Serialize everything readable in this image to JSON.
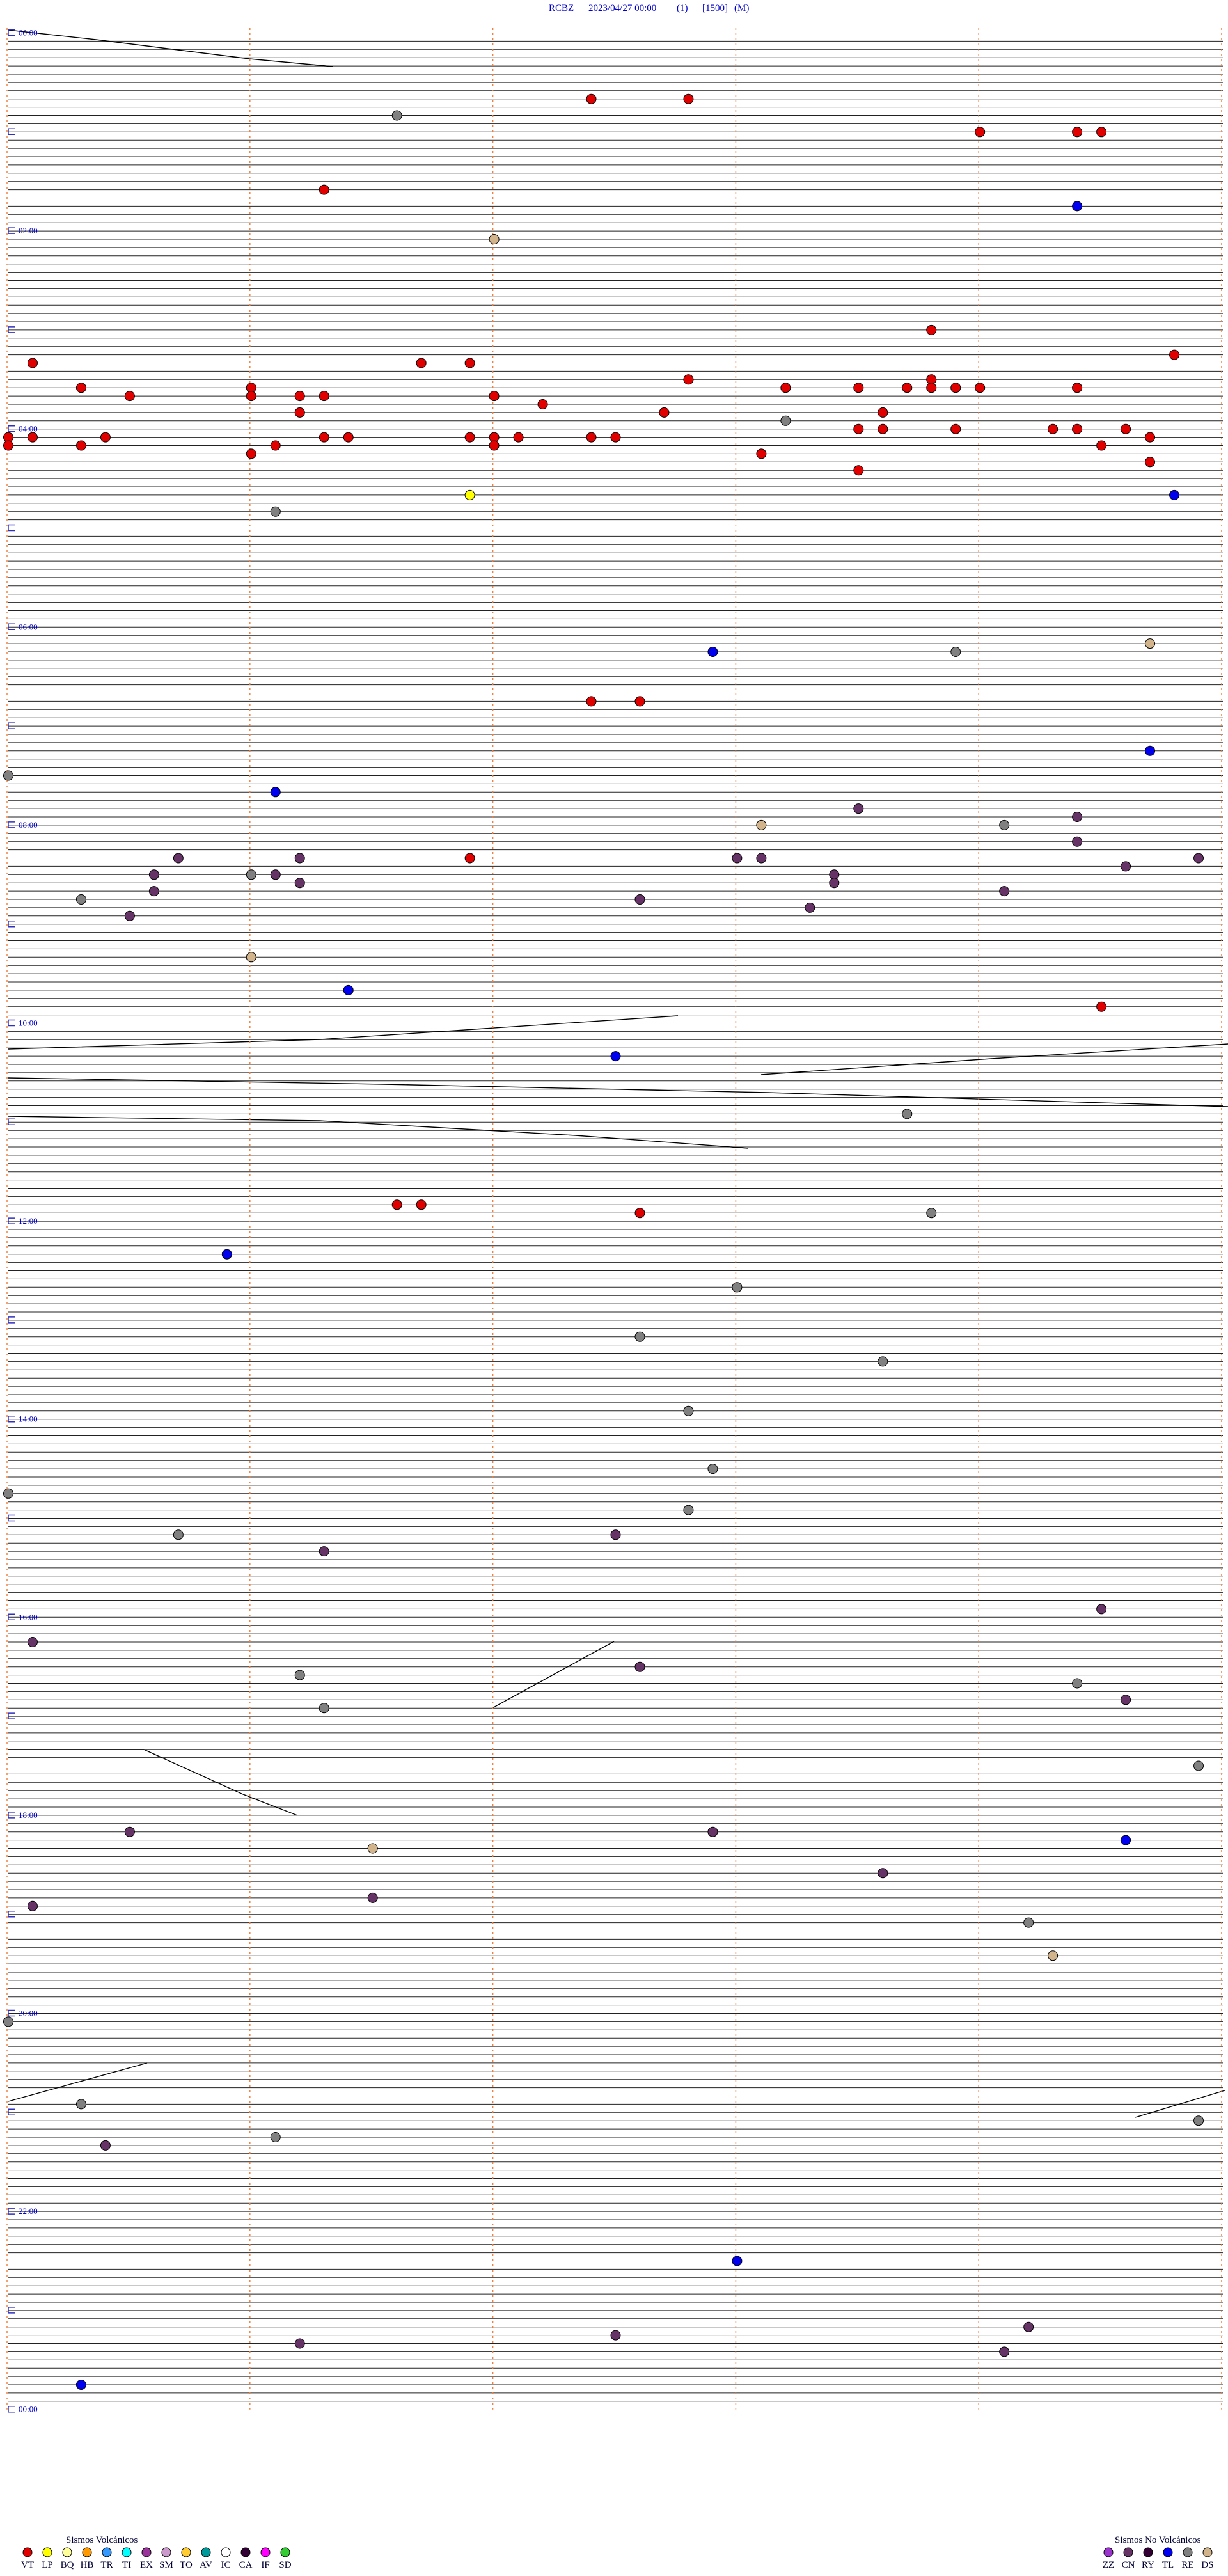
{
  "header": {
    "station": "RCBZ",
    "datetime": "2023/04/27 00:00",
    "channel": "(1)",
    "gain": "[1500]",
    "mode": "(M)"
  },
  "time_labels": [
    "00:00",
    "02:00",
    "04:00",
    "06:00",
    "08:00",
    "10:00",
    "12:00",
    "14:00",
    "16:00",
    "18:00",
    "20:00",
    "22:00",
    "00:00"
  ],
  "minutes_per_row": 5,
  "events": [
    {
      "minute": 42.4,
      "type": "VT"
    },
    {
      "minute": 42.8,
      "type": "VT"
    },
    {
      "minute": 51.6,
      "type": "RE"
    },
    {
      "minute": 64.0,
      "type": "VT"
    },
    {
      "minute": 64.4,
      "type": "VT"
    },
    {
      "minute": 64.5,
      "type": "VT"
    },
    {
      "minute": 96.3,
      "type": "VT"
    },
    {
      "minute": 109.4,
      "type": "TL"
    },
    {
      "minute": 127.0,
      "type": "DS"
    },
    {
      "minute": 183.8,
      "type": "VT"
    },
    {
      "minute": 199.8,
      "type": "VT"
    },
    {
      "minute": 200.1,
      "type": "VT"
    },
    {
      "minute": 201.7,
      "type": "VT"
    },
    {
      "minute": 201.9,
      "type": "VT"
    },
    {
      "minute": 212.8,
      "type": "VT"
    },
    {
      "minute": 213.8,
      "type": "VT"
    },
    {
      "minute": 215.3,
      "type": "VT"
    },
    {
      "minute": 216.0,
      "type": "VT"
    },
    {
      "minute": 218.2,
      "type": "VT"
    },
    {
      "minute": 218.5,
      "type": "VT"
    },
    {
      "minute": 218.7,
      "type": "VT"
    },
    {
      "minute": 218.8,
      "type": "VT"
    },
    {
      "minute": 218.9,
      "type": "VT"
    },
    {
      "minute": 219.0,
      "type": "VT"
    },
    {
      "minute": 219.4,
      "type": "VT"
    },
    {
      "minute": 220.5,
      "type": "VT"
    },
    {
      "minute": 221.0,
      "type": "VT"
    },
    {
      "minute": 221.2,
      "type": "VT"
    },
    {
      "minute": 221.3,
      "type": "VT"
    },
    {
      "minute": 222.0,
      "type": "VT"
    },
    {
      "minute": 227.2,
      "type": "VT"
    },
    {
      "minute": 231.2,
      "type": "VT"
    },
    {
      "minute": 232.7,
      "type": "VT"
    },
    {
      "minute": 233.6,
      "type": "VT"
    },
    {
      "minute": 238.2,
      "type": "RE"
    },
    {
      "minute": 243.5,
      "type": "VT"
    },
    {
      "minute": 243.6,
      "type": "VT"
    },
    {
      "minute": 243.9,
      "type": "VT"
    },
    {
      "minute": 244.3,
      "type": "VT"
    },
    {
      "minute": 244.4,
      "type": "VT"
    },
    {
      "minute": 244.6,
      "type": "VT"
    },
    {
      "minute": 245.0,
      "type": "VT"
    },
    {
      "minute": 245.1,
      "type": "VT"
    },
    {
      "minute": 245.4,
      "type": "VT"
    },
    {
      "minute": 246.3,
      "type": "VT"
    },
    {
      "minute": 246.4,
      "type": "VT"
    },
    {
      "minute": 246.9,
      "type": "VT"
    },
    {
      "minute": 247.0,
      "type": "VT"
    },
    {
      "minute": 247.1,
      "type": "VT"
    },
    {
      "minute": 247.4,
      "type": "VT"
    },
    {
      "minute": 247.5,
      "type": "VT"
    },
    {
      "minute": 249.7,
      "type": "VT"
    },
    {
      "minute": 250.0,
      "type": "VT"
    },
    {
      "minute": 250.3,
      "type": "VT"
    },
    {
      "minute": 251.1,
      "type": "VT"
    },
    {
      "minute": 252.0,
      "type": "VT"
    },
    {
      "minute": 254.5,
      "type": "VT"
    },
    {
      "minute": 256.0,
      "type": "VT"
    },
    {
      "minute": 258.1,
      "type": "VT"
    },
    {
      "minute": 264.7,
      "type": "VT"
    },
    {
      "minute": 268.5,
      "type": "VT"
    },
    {
      "minute": 281.9,
      "type": "LP"
    },
    {
      "minute": 284.8,
      "type": "TL"
    },
    {
      "minute": 291.1,
      "type": "RE"
    },
    {
      "minute": 374.7,
      "type": "DS"
    },
    {
      "minute": 377.9,
      "type": "TL"
    },
    {
      "minute": 378.9,
      "type": "RE"
    },
    {
      "minute": 407.4,
      "type": "VT"
    },
    {
      "minute": 407.6,
      "type": "VT"
    },
    {
      "minute": 439.7,
      "type": "TL"
    },
    {
      "minute": 450.0,
      "type": "RE"
    },
    {
      "minute": 461.1,
      "type": "TL"
    },
    {
      "minute": 473.5,
      "type": "CN"
    },
    {
      "minute": 479.4,
      "type": "CN"
    },
    {
      "minute": 483.1,
      "type": "DS"
    },
    {
      "minute": 484.1,
      "type": "RE"
    },
    {
      "minute": 494.4,
      "type": "CN"
    },
    {
      "minute": 500.7,
      "type": "CN"
    },
    {
      "minute": 501.2,
      "type": "CN"
    },
    {
      "minute": 501.9,
      "type": "VT"
    },
    {
      "minute": 503.0,
      "type": "CN"
    },
    {
      "minute": 503.1,
      "type": "CN"
    },
    {
      "minute": 504.9,
      "type": "CN"
    },
    {
      "minute": 509.6,
      "type": "CN"
    },
    {
      "minute": 510.6,
      "type": "CN"
    },
    {
      "minute": 511.0,
      "type": "RE"
    },
    {
      "minute": 511.1,
      "type": "CN"
    },
    {
      "minute": 513.4,
      "type": "CN"
    },
    {
      "minute": 516.2,
      "type": "CN"
    },
    {
      "minute": 518.4,
      "type": "CN"
    },
    {
      "minute": 520.6,
      "type": "CN"
    },
    {
      "minute": 524.1,
      "type": "CN"
    },
    {
      "minute": 525.3,
      "type": "RE"
    },
    {
      "minute": 527.6,
      "type": "CN"
    },
    {
      "minute": 533.3,
      "type": "CN"
    },
    {
      "minute": 535.5,
      "type": "CN"
    },
    {
      "minute": 561.0,
      "type": "DS"
    },
    {
      "minute": 581.4,
      "type": "TL"
    },
    {
      "minute": 594.5,
      "type": "VT"
    },
    {
      "minute": 622.5,
      "type": "TL"
    },
    {
      "minute": 658.7,
      "type": "RE"
    },
    {
      "minute": 711.6,
      "type": "VT"
    },
    {
      "minute": 711.7,
      "type": "VT"
    },
    {
      "minute": 717.6,
      "type": "VT"
    },
    {
      "minute": 718.8,
      "type": "RE"
    },
    {
      "minute": 740.9,
      "type": "TL"
    },
    {
      "minute": 763.0,
      "type": "RE"
    },
    {
      "minute": 792.6,
      "type": "RE"
    },
    {
      "minute": 808.6,
      "type": "RE"
    },
    {
      "minute": 837.8,
      "type": "RE"
    },
    {
      "minute": 872.9,
      "type": "RE"
    },
    {
      "minute": 885.0,
      "type": "RE"
    },
    {
      "minute": 897.8,
      "type": "RE"
    },
    {
      "minute": 910.7,
      "type": "RE"
    },
    {
      "minute": 912.5,
      "type": "CN"
    },
    {
      "minute": 921.3,
      "type": "CN"
    },
    {
      "minute": 959.5,
      "type": "CN"
    },
    {
      "minute": 975.1,
      "type": "CN"
    },
    {
      "minute": 992.6,
      "type": "CN"
    },
    {
      "minute": 996.2,
      "type": "RE"
    },
    {
      "minute": 1004.4,
      "type": "RE"
    },
    {
      "minute": 1014.6,
      "type": "CN"
    },
    {
      "minute": 1016.3,
      "type": "RE"
    },
    {
      "minute": 1054.9,
      "type": "RE"
    },
    {
      "minute": 1090.5,
      "type": "CN"
    },
    {
      "minute": 1092.9,
      "type": "CN"
    },
    {
      "minute": 1099.6,
      "type": "TL"
    },
    {
      "minute": 1101.5,
      "type": "DS"
    },
    {
      "minute": 1118.6,
      "type": "CN"
    },
    {
      "minute": 1131.5,
      "type": "CN"
    },
    {
      "minute": 1135.1,
      "type": "CN"
    },
    {
      "minute": 1149.2,
      "type": "RE"
    },
    {
      "minute": 1169.3,
      "type": "DS"
    },
    {
      "minute": 1205.0,
      "type": "RE"
    },
    {
      "minute": 1255.3,
      "type": "RE"
    },
    {
      "minute": 1269.9,
      "type": "RE"
    },
    {
      "minute": 1276.1,
      "type": "RE"
    },
    {
      "minute": 1280.4,
      "type": "CN"
    },
    {
      "minute": 1353.0,
      "type": "TL"
    },
    {
      "minute": 1394.2,
      "type": "CN"
    },
    {
      "minute": 1397.5,
      "type": "CN"
    },
    {
      "minute": 1401.2,
      "type": "CN"
    },
    {
      "minute": 1409.1,
      "type": "CN"
    },
    {
      "minute": 1425.3,
      "type": "TL"
    }
  ],
  "legend": [
    {
      "title": "Sismos Volcánicos",
      "items": [
        {
          "code": "VT",
          "color": "#e00000"
        },
        {
          "code": "LP",
          "color": "#ffff00"
        },
        {
          "code": "BQ",
          "color": "#ffff99"
        },
        {
          "code": "HB",
          "color": "#ff9900"
        },
        {
          "code": "TR",
          "color": "#3399ff"
        },
        {
          "code": "TI",
          "color": "#00ffff"
        },
        {
          "code": "EX",
          "color": "#993399"
        },
        {
          "code": "SM",
          "color": "#cc99cc"
        },
        {
          "code": "TO",
          "color": "#ffcc33"
        },
        {
          "code": "AV",
          "color": "#009999"
        },
        {
          "code": "IC",
          "color": "#ffffff"
        },
        {
          "code": "CA",
          "color": "#330033"
        },
        {
          "code": "IF",
          "color": "#ff00ff"
        },
        {
          "code": "SD",
          "color": "#33cc33"
        }
      ]
    },
    {
      "title": "Sismos No Volcánicos",
      "items": [
        {
          "code": "ZZ",
          "color": "#9933cc"
        },
        {
          "code": "CN",
          "color": "#663366"
        },
        {
          "code": "RY",
          "color": "#330033"
        },
        {
          "code": "TL",
          "color": "#0000ee"
        },
        {
          "code": "RE",
          "color": "#808080"
        },
        {
          "code": "DS",
          "color": "#d2b48c"
        }
      ]
    }
  ]
}
